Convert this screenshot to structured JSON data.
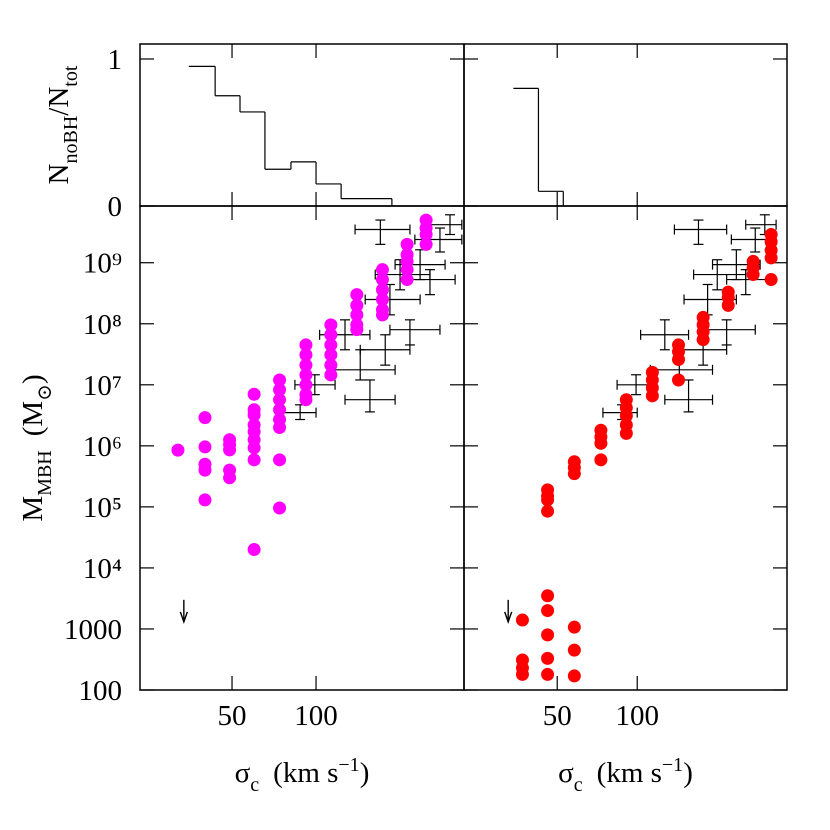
{
  "chart_data": [
    {
      "type": "histogram",
      "xlog": true,
      "xlim": [
        23.4,
        339
      ],
      "ylim": [
        0,
        1.102
      ],
      "xticks": [
        50,
        100
      ],
      "yticks": [
        0,
        1
      ],
      "xtick_labels": false,
      "ylabel": [
        {
          "text": "N"
        },
        {
          "text": "noBH",
          "sub": true
        },
        {
          "text": "/N"
        },
        {
          "text": "tot",
          "sub": true
        }
      ],
      "color": "#000000",
      "bins": [
        35,
        43.5,
        53.4,
        65.6,
        81.3,
        100,
        123,
        151,
        187
      ],
      "values": [
        0.95,
        0.75,
        0.64,
        0.25,
        0.3,
        0.15,
        0.05,
        0.05
      ]
    },
    {
      "type": "histogram",
      "xlog": true,
      "xlim": [
        22.3,
        366
      ],
      "ylim": [
        0,
        1.102
      ],
      "xticks": [
        50,
        100
      ],
      "yticks": [
        0,
        1
      ],
      "xtick_labels": false,
      "ytick_labels": false,
      "color": "#000000",
      "bins": [
        34.2,
        42.5,
        52.7
      ],
      "values": [
        0.8,
        0.1
      ]
    },
    {
      "type": "scatter",
      "xlog": true,
      "ylog": true,
      "xlim": [
        23.4,
        339
      ],
      "ylim": [
        100,
        8500000000.0
      ],
      "xticks": [
        50,
        100
      ],
      "yticks": [
        100,
        1000,
        {
          "value": 10000,
          "label": "10⁴"
        },
        {
          "value": 100000,
          "label": "10⁵"
        },
        {
          "value": 1000000,
          "label": "10⁶"
        },
        {
          "value": 10000000,
          "label": "10⁷"
        },
        {
          "value": 100000000,
          "label": "10⁸"
        },
        {
          "value": 1000000000,
          "label": "10⁹"
        }
      ],
      "xlabel": [
        {
          "text": "σ"
        },
        {
          "text": "c",
          "sub": true
        },
        {
          "text": "(km s",
          "gap": true
        },
        {
          "text": "−1",
          "sup": true
        },
        {
          "text": ")"
        }
      ],
      "ylabel": [
        {
          "text": "M"
        },
        {
          "text": "MBH",
          "sub": true
        },
        {
          "text": "(M",
          "gap": true
        },
        {
          "text": "⊙",
          "sub": true
        },
        {
          "text": ")"
        }
      ],
      "points": {
        "color": "#ff00ff",
        "x": [
          32,
          40,
          40,
          40,
          40,
          40,
          49,
          49,
          49,
          49,
          49,
          60,
          60,
          60,
          60,
          60,
          60,
          60,
          60,
          60,
          74,
          74,
          74,
          74,
          74,
          74,
          74,
          74,
          92,
          92,
          92,
          92,
          92,
          92,
          92,
          113,
          113,
          113,
          113,
          113,
          113,
          140,
          140,
          140,
          140,
          140,
          173,
          173,
          173,
          173,
          173,
          173,
          212,
          212,
          212,
          212,
          212,
          248,
          248,
          248,
          248
        ],
        "values": [
          850000.0,
          2900000.0,
          960000.0,
          500000.0,
          400000.0,
          130000.0,
          1260000.0,
          1050000.0,
          860000.0,
          400000.0,
          300000.0,
          7000000.0,
          3900000.0,
          3200000.0,
          2200000.0,
          1700000.0,
          1260000.0,
          930000.0,
          590000.0,
          20000.0,
          12000000.0,
          8300000.0,
          5700000.0,
          3900000.0,
          2700000.0,
          2000000.0,
          590000.0,
          96000.0,
          45000000.0,
          31000000.0,
          21000000.0,
          14500000.0,
          10000000.0,
          6900000.0,
          5700000.0,
          96000000.0,
          66000000.0,
          45000000.0,
          31000000.0,
          21000000.0,
          14500000.0,
          300000000.0,
          200000000.0,
          140000000.0,
          96000000.0,
          80000000.0,
          770000000.0,
          530000000.0,
          360000000.0,
          250000000.0,
          170000000.0,
          140000000.0,
          2000000000.0,
          1350000000.0,
          1050000000.0,
          770000000.0,
          530000000.0,
          5000000000.0,
          3700000000.0,
          2900000000.0,
          2000000000.0
        ]
      },
      "observed": {
        "color": "#000000",
        "x": [
          87.7,
          156,
          127,
          144,
          177,
          184,
          200,
          236,
          278,
          302,
          170,
          217,
          256,
          99
        ],
        "xlow": [
          74.3,
          127,
          103,
          112,
          144,
          150,
          163,
          192,
          226,
          256,
          138,
          184,
          217,
          84
        ],
        "xhigh": [
          100,
          192,
          156,
          192,
          217,
          236,
          256,
          290,
          333,
          333,
          217,
          278,
          315,
          117
        ],
        "values": [
          3500000.0,
          5700000.0,
          66000000.0,
          17600000.0,
          37500000.0,
          250000000.0,
          640000000.0,
          930000000.0,
          2400000000.0,
          4200000000.0,
          3500000000.0,
          80000000.0,
          530000000.0,
          10000000.0
        ],
        "ylow": [
          2700000.0,
          3600000.0,
          37500000.0,
          12000000.0,
          21000000.0,
          140000000.0,
          360000000.0,
          530000000.0,
          1500000000.0,
          2900000000.0,
          2000000000.0,
          45000000.0,
          300000000.0,
          6900000.0
        ],
        "yhigh": [
          4700000.0,
          12000000.0,
          116000000.0,
          37500000.0,
          66000000.0,
          440000000.0,
          1120000000.0,
          1630000000.0,
          3700000000.0,
          6100000000.0,
          5000000000.0,
          116000000.0,
          770000000.0,
          14600000.0
        ]
      },
      "upper_limits": {
        "x": [
          33.6
        ],
        "values": [
          3000
        ]
      }
    },
    {
      "type": "scatter",
      "xlog": true,
      "ylog": true,
      "xlim": [
        22.3,
        366
      ],
      "ylim": [
        100,
        8500000000.0
      ],
      "xticks": [
        50,
        100
      ],
      "ytick_labels": false,
      "yticks": [
        100,
        1000,
        10000,
        100000,
        1000000,
        10000000,
        100000000,
        1000000000
      ],
      "xlabel": [
        {
          "text": "σ"
        },
        {
          "text": "c",
          "sub": true
        },
        {
          "text": "(km s",
          "gap": true
        },
        {
          "text": "−1",
          "sup": true
        },
        {
          "text": ")"
        }
      ],
      "points": {
        "color": "#ff0000",
        "x": [
          37,
          37,
          37,
          37,
          46,
          46,
          46,
          46,
          46,
          46,
          46,
          46,
          46,
          58,
          58,
          58,
          58,
          58,
          58,
          73,
          73,
          73,
          73,
          91,
          91,
          91,
          91,
          91,
          114,
          114,
          114,
          114,
          143,
          143,
          143,
          143,
          177,
          177,
          177,
          177,
          220,
          220,
          220,
          273,
          273,
          273,
          319,
          319,
          319,
          319,
          319
        ],
        "values": [
          1400,
          310,
          230,
          180,
          190000.0,
          150000.0,
          130000.0,
          85000.0,
          3500,
          2000,
          800,
          330,
          180,
          550000.0,
          440000.0,
          350000.0,
          1070,
          450,
          170,
          1800000.0,
          1400000.0,
          1100000.0,
          590000.0,
          5700000.0,
          4200000.0,
          3100000.0,
          2200000.0,
          1600000.0,
          16000000.0,
          12000000.0,
          8900000.0,
          6600000.0,
          45000000.0,
          35000000.0,
          26000000.0,
          12000000.0,
          127000000.0,
          96000000.0,
          74000000.0,
          55000000.0,
          330000000.0,
          270000000.0,
          200000000.0,
          1050000000.0,
          830000000.0,
          640000000.0,
          2900000000.0,
          2200000000.0,
          1600000000.0,
          1200000000.0,
          530000000.0
        ]
      },
      "observed": {
        "color": "#000000",
        "x": [
          87.7,
          156,
          127,
          144,
          177,
          184,
          200,
          236,
          278,
          302,
          170,
          217,
          256,
          99
        ],
        "xlow": [
          74.3,
          127,
          103,
          112,
          144,
          150,
          163,
          192,
          226,
          256,
          138,
          184,
          217,
          84
        ],
        "xhigh": [
          100,
          192,
          156,
          192,
          217,
          236,
          256,
          290,
          333,
          333,
          217,
          278,
          315,
          117
        ],
        "values": [
          3500000.0,
          5700000.0,
          66000000.0,
          17600000.0,
          37500000.0,
          250000000.0,
          640000000.0,
          930000000.0,
          2400000000.0,
          4200000000.0,
          3500000000.0,
          80000000.0,
          530000000.0,
          10000000.0
        ],
        "ylow": [
          2700000.0,
          3600000.0,
          37500000.0,
          12000000.0,
          21000000.0,
          140000000.0,
          360000000.0,
          530000000.0,
          1500000000.0,
          2900000000.0,
          2000000000.0,
          45000000.0,
          300000000.0,
          6900000.0
        ],
        "yhigh": [
          4700000.0,
          12000000.0,
          116000000.0,
          37500000.0,
          66000000.0,
          440000000.0,
          1120000000.0,
          1630000000.0,
          3700000000.0,
          6100000000.0,
          5000000000.0,
          116000000.0,
          770000000.0,
          14600000.0
        ]
      },
      "upper_limits": {
        "x": [
          32.7
        ],
        "values": [
          3000
        ]
      }
    }
  ]
}
